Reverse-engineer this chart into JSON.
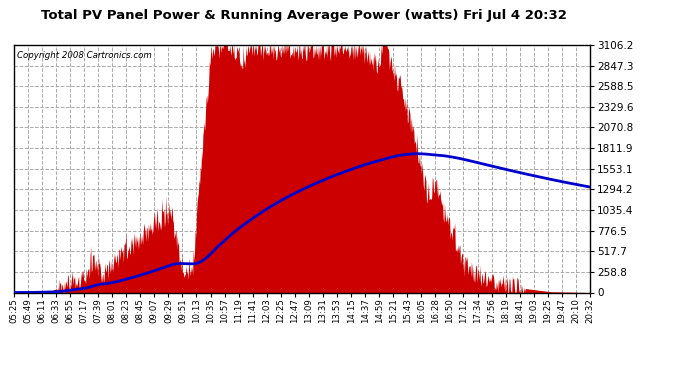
{
  "title": "Total PV Panel Power & Running Average Power (watts) Fri Jul 4 20:32",
  "copyright": "Copyright 2008 Cartronics.com",
  "background_color": "#ffffff",
  "plot_bg_color": "#ffffff",
  "fill_color": "#cc0000",
  "line_color": "#0000cc",
  "grid_color": "#aaaaaa",
  "yticks": [
    0.0,
    258.8,
    517.7,
    776.5,
    1035.4,
    1294.2,
    1553.1,
    1811.9,
    2070.8,
    2329.6,
    2588.5,
    2847.3,
    3106.2
  ],
  "ymax": 3106.2,
  "ymin": 0.0,
  "xtick_labels": [
    "05:25",
    "05:49",
    "06:11",
    "06:33",
    "06:55",
    "07:17",
    "07:39",
    "08:01",
    "08:23",
    "08:45",
    "09:07",
    "09:29",
    "09:51",
    "10:13",
    "10:35",
    "10:57",
    "11:19",
    "11:41",
    "12:03",
    "12:25",
    "12:47",
    "13:09",
    "13:31",
    "13:53",
    "14:15",
    "14:37",
    "14:59",
    "15:21",
    "15:43",
    "16:05",
    "16:28",
    "16:50",
    "17:12",
    "17:34",
    "17:56",
    "18:19",
    "18:41",
    "19:03",
    "19:25",
    "19:47",
    "20:10",
    "20:32"
  ],
  "num_points": 900
}
